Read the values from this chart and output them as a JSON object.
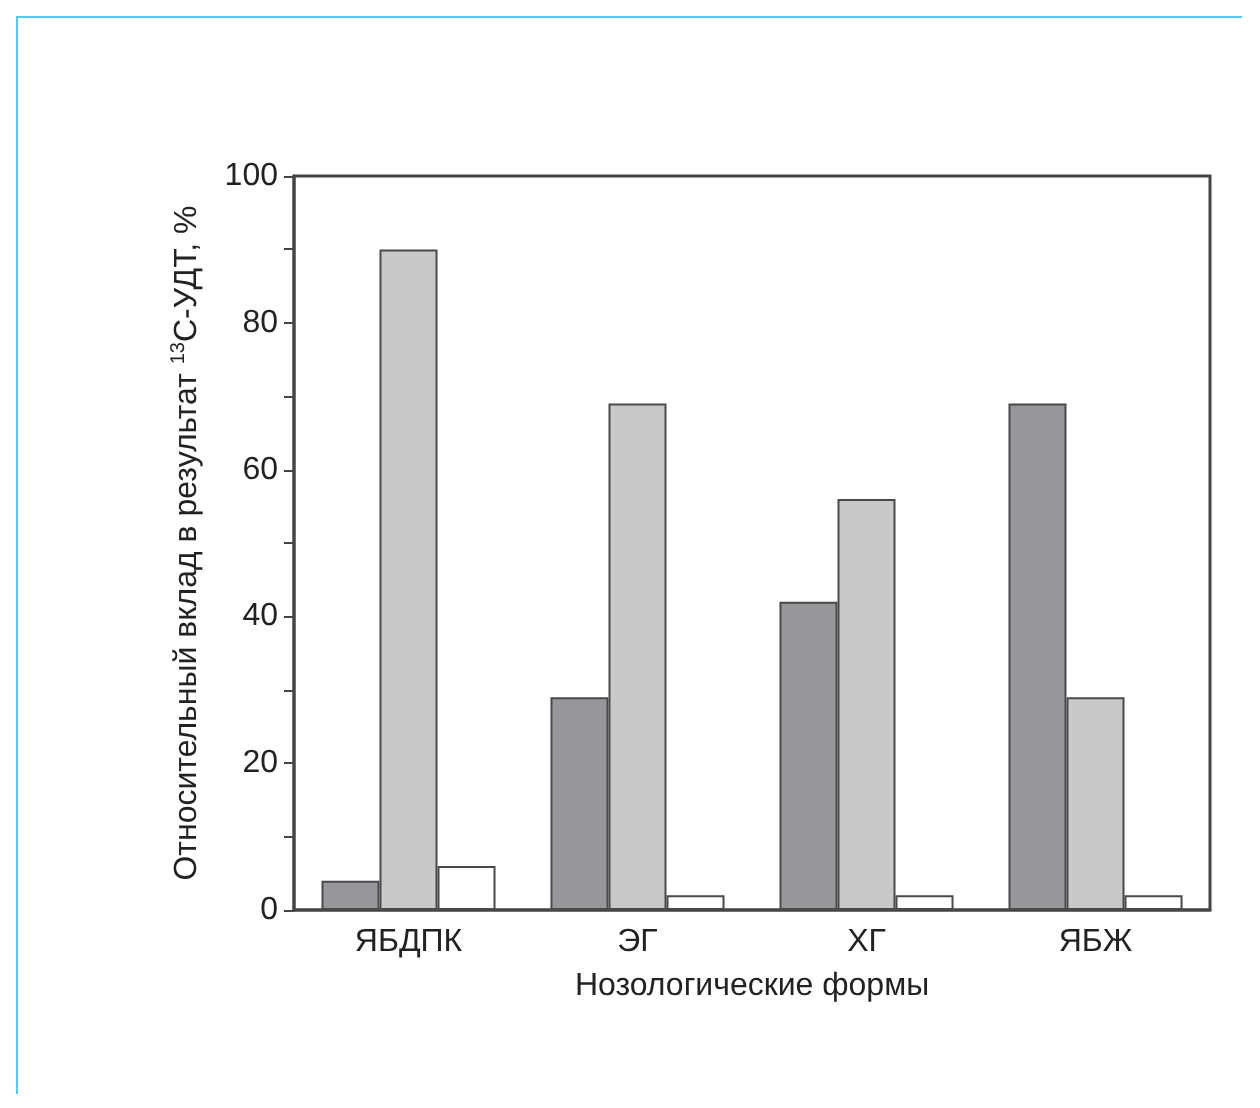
{
  "chart_data": {
    "type": "bar",
    "xlabel": "Нозологические формы",
    "ylabel": "Относительный вклад в результат $^{13}$С-УДТ, %",
    "categories": [
      "ЯБДПК",
      "ЭГ",
      "ХГ",
      "ЯБЖ"
    ],
    "series": [
      {
        "color": "#96979b",
        "values": [
          4,
          29,
          42,
          69
        ]
      },
      {
        "color": "#c8c9cb",
        "values": [
          90,
          69,
          56,
          29
        ]
      },
      {
        "color": "#ffffff",
        "values": [
          6,
          2,
          2,
          2
        ]
      }
    ],
    "ylim": [
      0,
      100
    ],
    "yticks": [
      0,
      {
        "value": 10,
        "label": null
      },
      20,
      {
        "value": 30,
        "label": null
      },
      40,
      {
        "value": 50,
        "label": null
      },
      60,
      {
        "value": 70,
        "label": null
      },
      80,
      {
        "value": 90,
        "label": null
      },
      100
    ],
    "grid": false
  }
}
